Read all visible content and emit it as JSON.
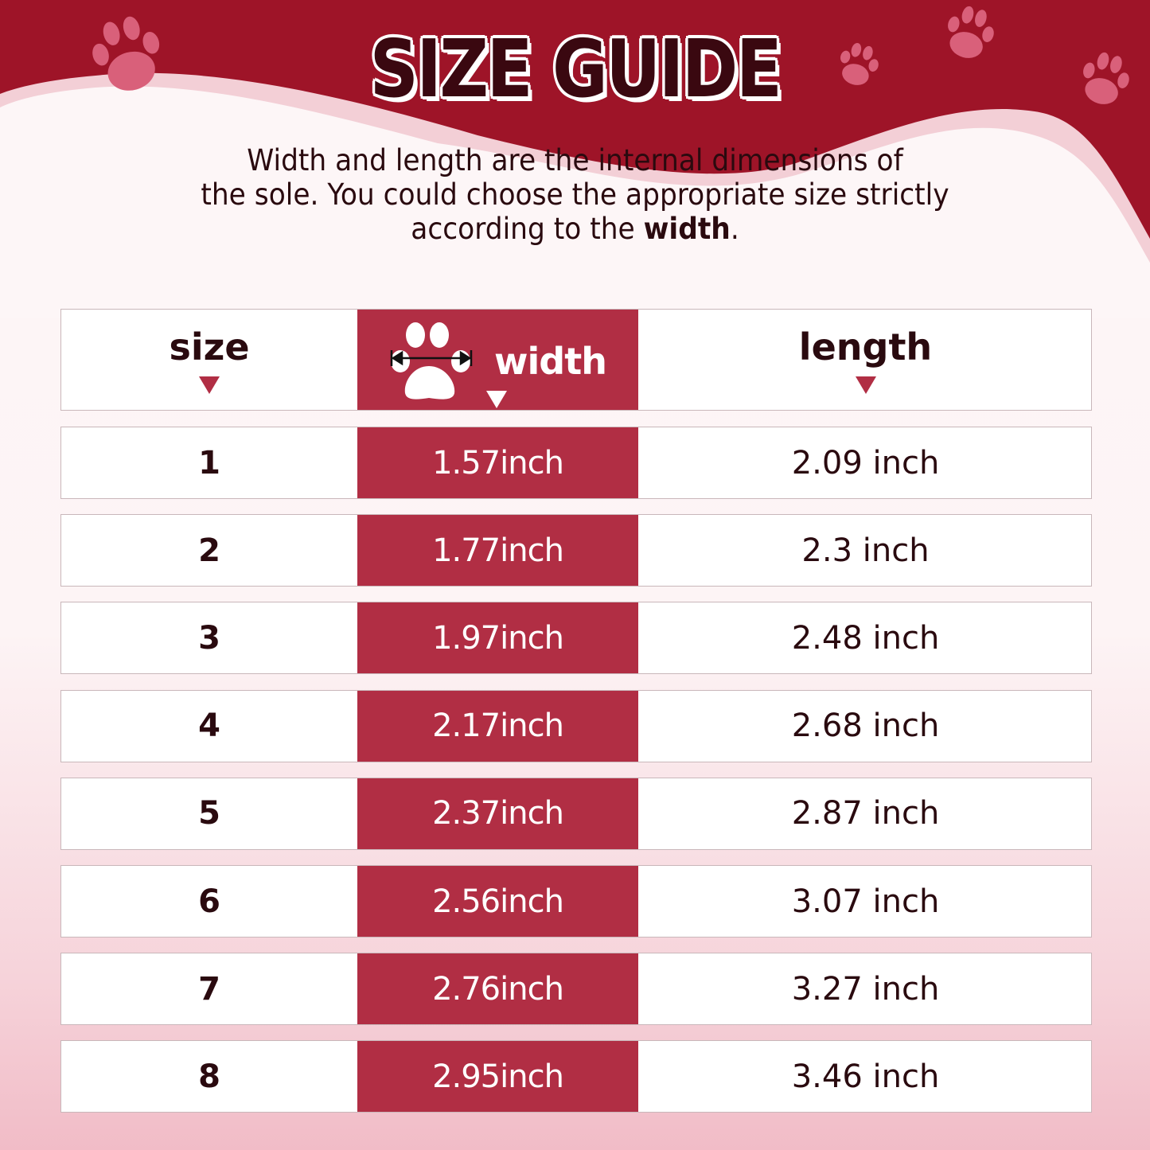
{
  "title": "SIZE GUIDE",
  "intro": {
    "line1": "Width and length are the internal dimensions of",
    "line2": "the sole. You could choose the appropriate size strictly",
    "line3_pre": "according to the ",
    "line3_bold": "width",
    "line3_post": "."
  },
  "colors": {
    "brand": "#9e1428",
    "width_column": "#b12e44",
    "paw": "#d9607a"
  },
  "table": {
    "headers": {
      "size": "size",
      "width": "width",
      "length": "length"
    },
    "rows": [
      {
        "size": "1",
        "width": "1.57inch",
        "length": "2.09 inch"
      },
      {
        "size": "2",
        "width": "1.77inch",
        "length": "2.3 inch"
      },
      {
        "size": "3",
        "width": "1.97inch",
        "length": "2.48 inch"
      },
      {
        "size": "4",
        "width": "2.17inch",
        "length": "2.68 inch"
      },
      {
        "size": "5",
        "width": "2.37inch",
        "length": "2.87 inch"
      },
      {
        "size": "6",
        "width": "2.56inch",
        "length": "3.07 inch"
      },
      {
        "size": "7",
        "width": "2.76inch",
        "length": "3.27 inch"
      },
      {
        "size": "8",
        "width": "2.95inch",
        "length": "3.46 inch"
      }
    ]
  }
}
